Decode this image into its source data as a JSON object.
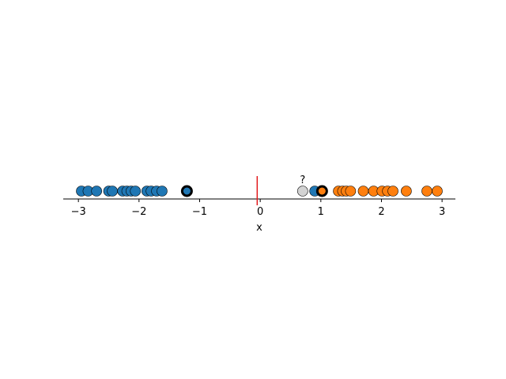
{
  "chart_data": {
    "type": "scatter",
    "xlabel": "x",
    "xlim": [
      -3.25,
      3.22
    ],
    "xticks": [
      {
        "value": -3,
        "label": "−3"
      },
      {
        "value": -2,
        "label": "−2"
      },
      {
        "value": -1,
        "label": "−1"
      },
      0,
      1,
      2,
      3
    ],
    "series": [
      {
        "color": "#1f77b4",
        "edgewidth": 0.6,
        "x": [
          -2.95,
          -2.84,
          -2.7,
          -2.5,
          -2.44,
          -2.27,
          -2.2,
          -2.13,
          -2.06,
          -1.87,
          -1.8,
          -1.71,
          -1.62,
          0.9
        ]
      },
      {
        "color": "#ff7f0e",
        "edgewidth": 0.6,
        "x": [
          1.29,
          1.36,
          1.42,
          1.49,
          1.7,
          1.87,
          2.01,
          2.1,
          2.19,
          2.41,
          2.75,
          2.92
        ]
      },
      {
        "color": "#1f77b4",
        "edgewidth": 3,
        "x": [
          -1.21
        ]
      },
      {
        "color": "#ff7f0e",
        "edgewidth": 3,
        "x": [
          1.02
        ]
      },
      {
        "color": "#d3d3d3",
        "edgewidth": 0.6,
        "x": [
          0.7
        ],
        "annotation": "?"
      }
    ],
    "boundary": {
      "x": -0.05,
      "color": "#e31a1c"
    }
  }
}
